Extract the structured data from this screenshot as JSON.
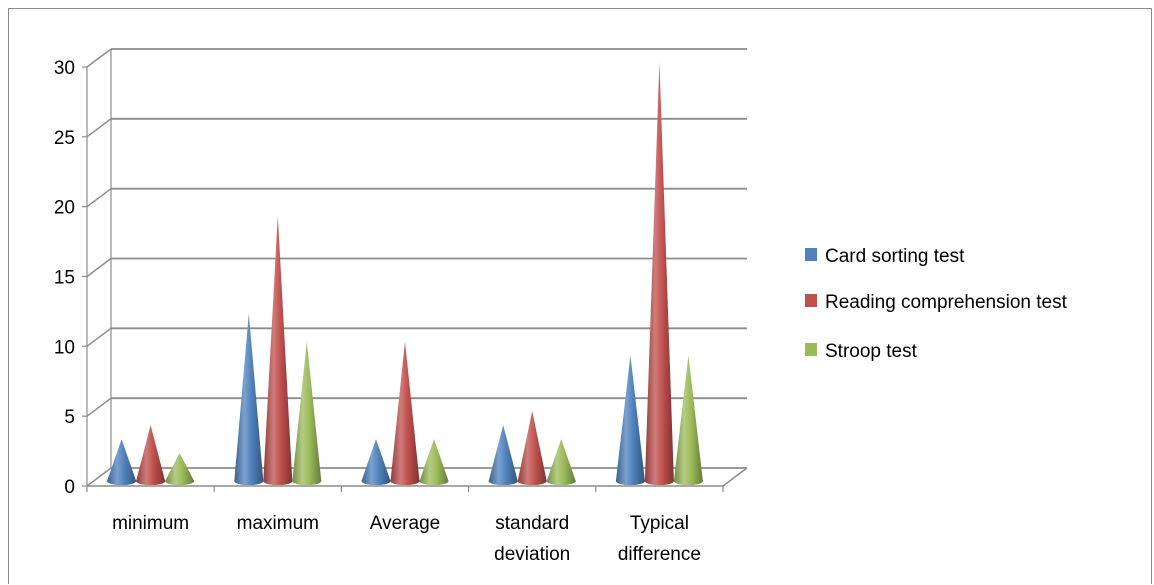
{
  "chart_data": {
    "type": "bar",
    "style": "3d-cone",
    "categories": [
      [
        "minimum"
      ],
      [
        "maximum"
      ],
      [
        "Average"
      ],
      [
        "standard",
        "deviation"
      ],
      [
        "Typical",
        "difference"
      ]
    ],
    "series": [
      {
        "name": "Card sorting test",
        "color": "#4F81BD",
        "values": [
          3,
          12,
          3,
          4,
          9
        ]
      },
      {
        "name": "Reading comprehension test",
        "color": "#C0504D",
        "values": [
          4,
          19,
          10,
          5,
          30
        ]
      },
      {
        "name": "Stroop test",
        "color": "#9BBB59",
        "values": [
          2,
          10,
          3,
          3,
          9
        ]
      }
    ],
    "ylim": [
      0,
      30
    ],
    "yticks": [
      0,
      5,
      10,
      15,
      20,
      25,
      30
    ],
    "grid": true,
    "legend": "right",
    "title": "",
    "xlabel": "",
    "ylabel": ""
  }
}
